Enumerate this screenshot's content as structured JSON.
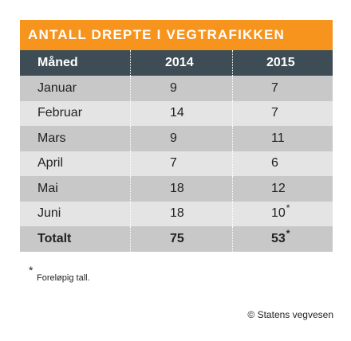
{
  "chart_data": {
    "type": "table",
    "title": "ANTALL DREPTE I VEGTRAFIKKEN",
    "columns": [
      "Måned",
      "2014",
      "2015"
    ],
    "rows": [
      {
        "month": "Januar",
        "y2014": "9",
        "y2015": "7",
        "mark": ""
      },
      {
        "month": "Februar",
        "y2014": "14",
        "y2015": "7",
        "mark": ""
      },
      {
        "month": "Mars",
        "y2014": "9",
        "y2015": "11",
        "mark": ""
      },
      {
        "month": "April",
        "y2014": "7",
        "y2015": "6",
        "mark": ""
      },
      {
        "month": "Mai",
        "y2014": "18",
        "y2015": "12",
        "mark": ""
      },
      {
        "month": "Juni",
        "y2014": "18",
        "y2015": "10",
        "mark": "*"
      }
    ],
    "total": {
      "month": "Totalt",
      "y2014": "75",
      "y2015": "53",
      "mark": "*"
    },
    "colors": {
      "title_bg": "#f7941d",
      "header_bg": "#3e4d55",
      "row_dark": "#c8c8c8",
      "row_light": "#e4e4e4"
    }
  },
  "footnote": {
    "marker": "*",
    "text": "Foreløpig tall."
  },
  "copyright": "© Statens vegvesen"
}
